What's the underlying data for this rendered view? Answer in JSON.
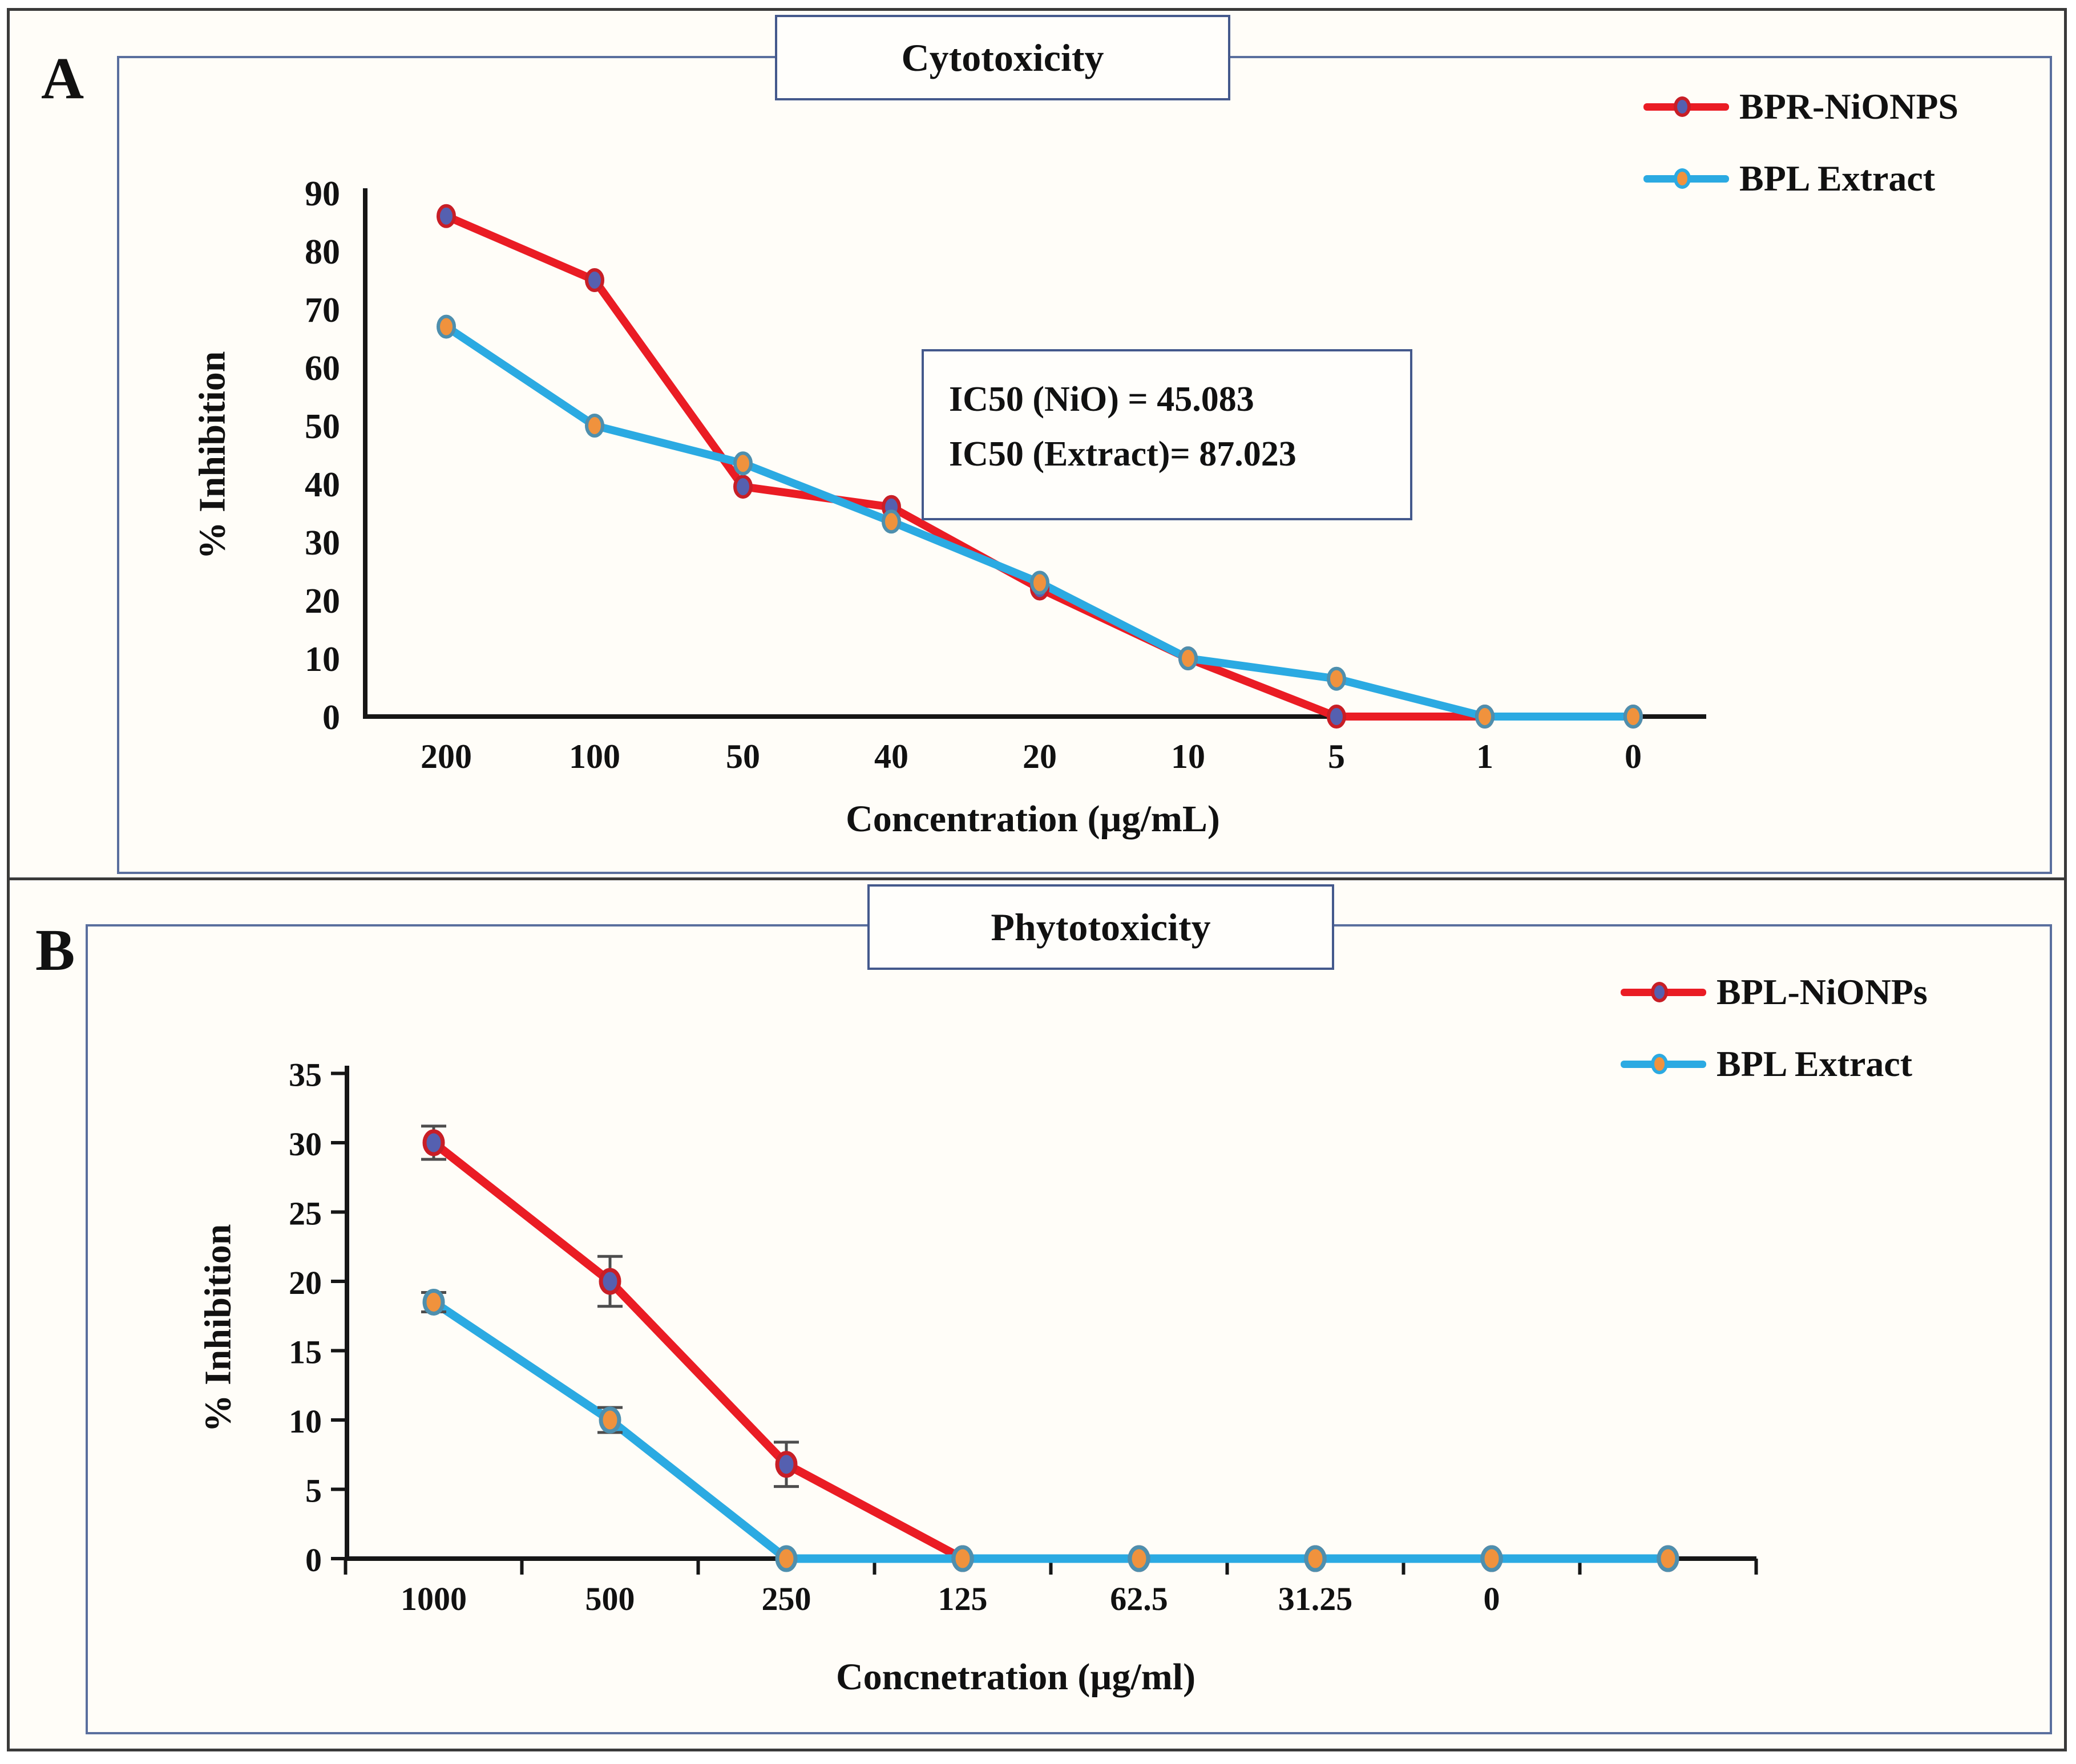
{
  "figure": {
    "panel_a_label": "A",
    "panel_b_label": "B"
  },
  "charts": {
    "a": {
      "type": "line",
      "title": "Cytotoxicity",
      "xlabel": "Concentration (µg/mL)",
      "ylabel": "% Inhibition",
      "categories": [
        "200",
        "100",
        "50",
        "40",
        "20",
        "10",
        "5",
        "1",
        "0"
      ],
      "yticks": [
        0,
        10,
        20,
        30,
        40,
        50,
        60,
        70,
        80,
        90
      ],
      "ylim": [
        0,
        90
      ],
      "legend_position": "top-right",
      "grid": false,
      "series": [
        {
          "name": "BPR-NiONPS",
          "color": "#ea1c24",
          "marker_fill": "#5560b0",
          "marker_ring": "#c81e26",
          "values": [
            86,
            75,
            39.5,
            36,
            22,
            10,
            0,
            0,
            0
          ]
        },
        {
          "name": "BPL Extract",
          "color": "#2baae2",
          "marker_fill": "#f0923d",
          "marker_ring": "#4e8fae",
          "values": [
            67,
            50,
            43.5,
            33.5,
            23,
            10,
            6.5,
            0,
            0
          ]
        }
      ],
      "annotation": {
        "line1": "IC50 (NiO) = 45.083",
        "line2": "IC50 (Extract)= 87.023"
      }
    },
    "b": {
      "type": "line",
      "title": "Phytotoxicity",
      "xlabel": "Concnetration (µg/ml)",
      "ylabel": "% Inhibition",
      "categories": [
        "1000",
        "500",
        "250",
        "125",
        "62.5",
        "31.25",
        "0",
        ""
      ],
      "yticks": [
        0,
        5,
        10,
        15,
        20,
        25,
        30,
        35
      ],
      "ylim": [
        0,
        35
      ],
      "legend_position": "top-right",
      "grid": false,
      "error_bar_color": "#4d4d4d",
      "series": [
        {
          "name": "BPL-NiONPs",
          "color": "#ea1c24",
          "marker_fill": "#5560b0",
          "marker_ring": "#c81e26",
          "values": [
            30,
            20,
            6.8,
            0,
            0,
            0,
            0,
            0
          ],
          "errors": [
            1.2,
            1.8,
            1.6,
            0,
            0,
            0,
            0,
            0
          ]
        },
        {
          "name": "BPL Extract",
          "color": "#2baae2",
          "marker_fill": "#f0923d",
          "marker_ring": "#4e8fae",
          "values": [
            18.5,
            10,
            0,
            0,
            0,
            0,
            0,
            0
          ],
          "errors": [
            0.7,
            0.9,
            0,
            0,
            0,
            0,
            0,
            0
          ]
        }
      ]
    }
  }
}
